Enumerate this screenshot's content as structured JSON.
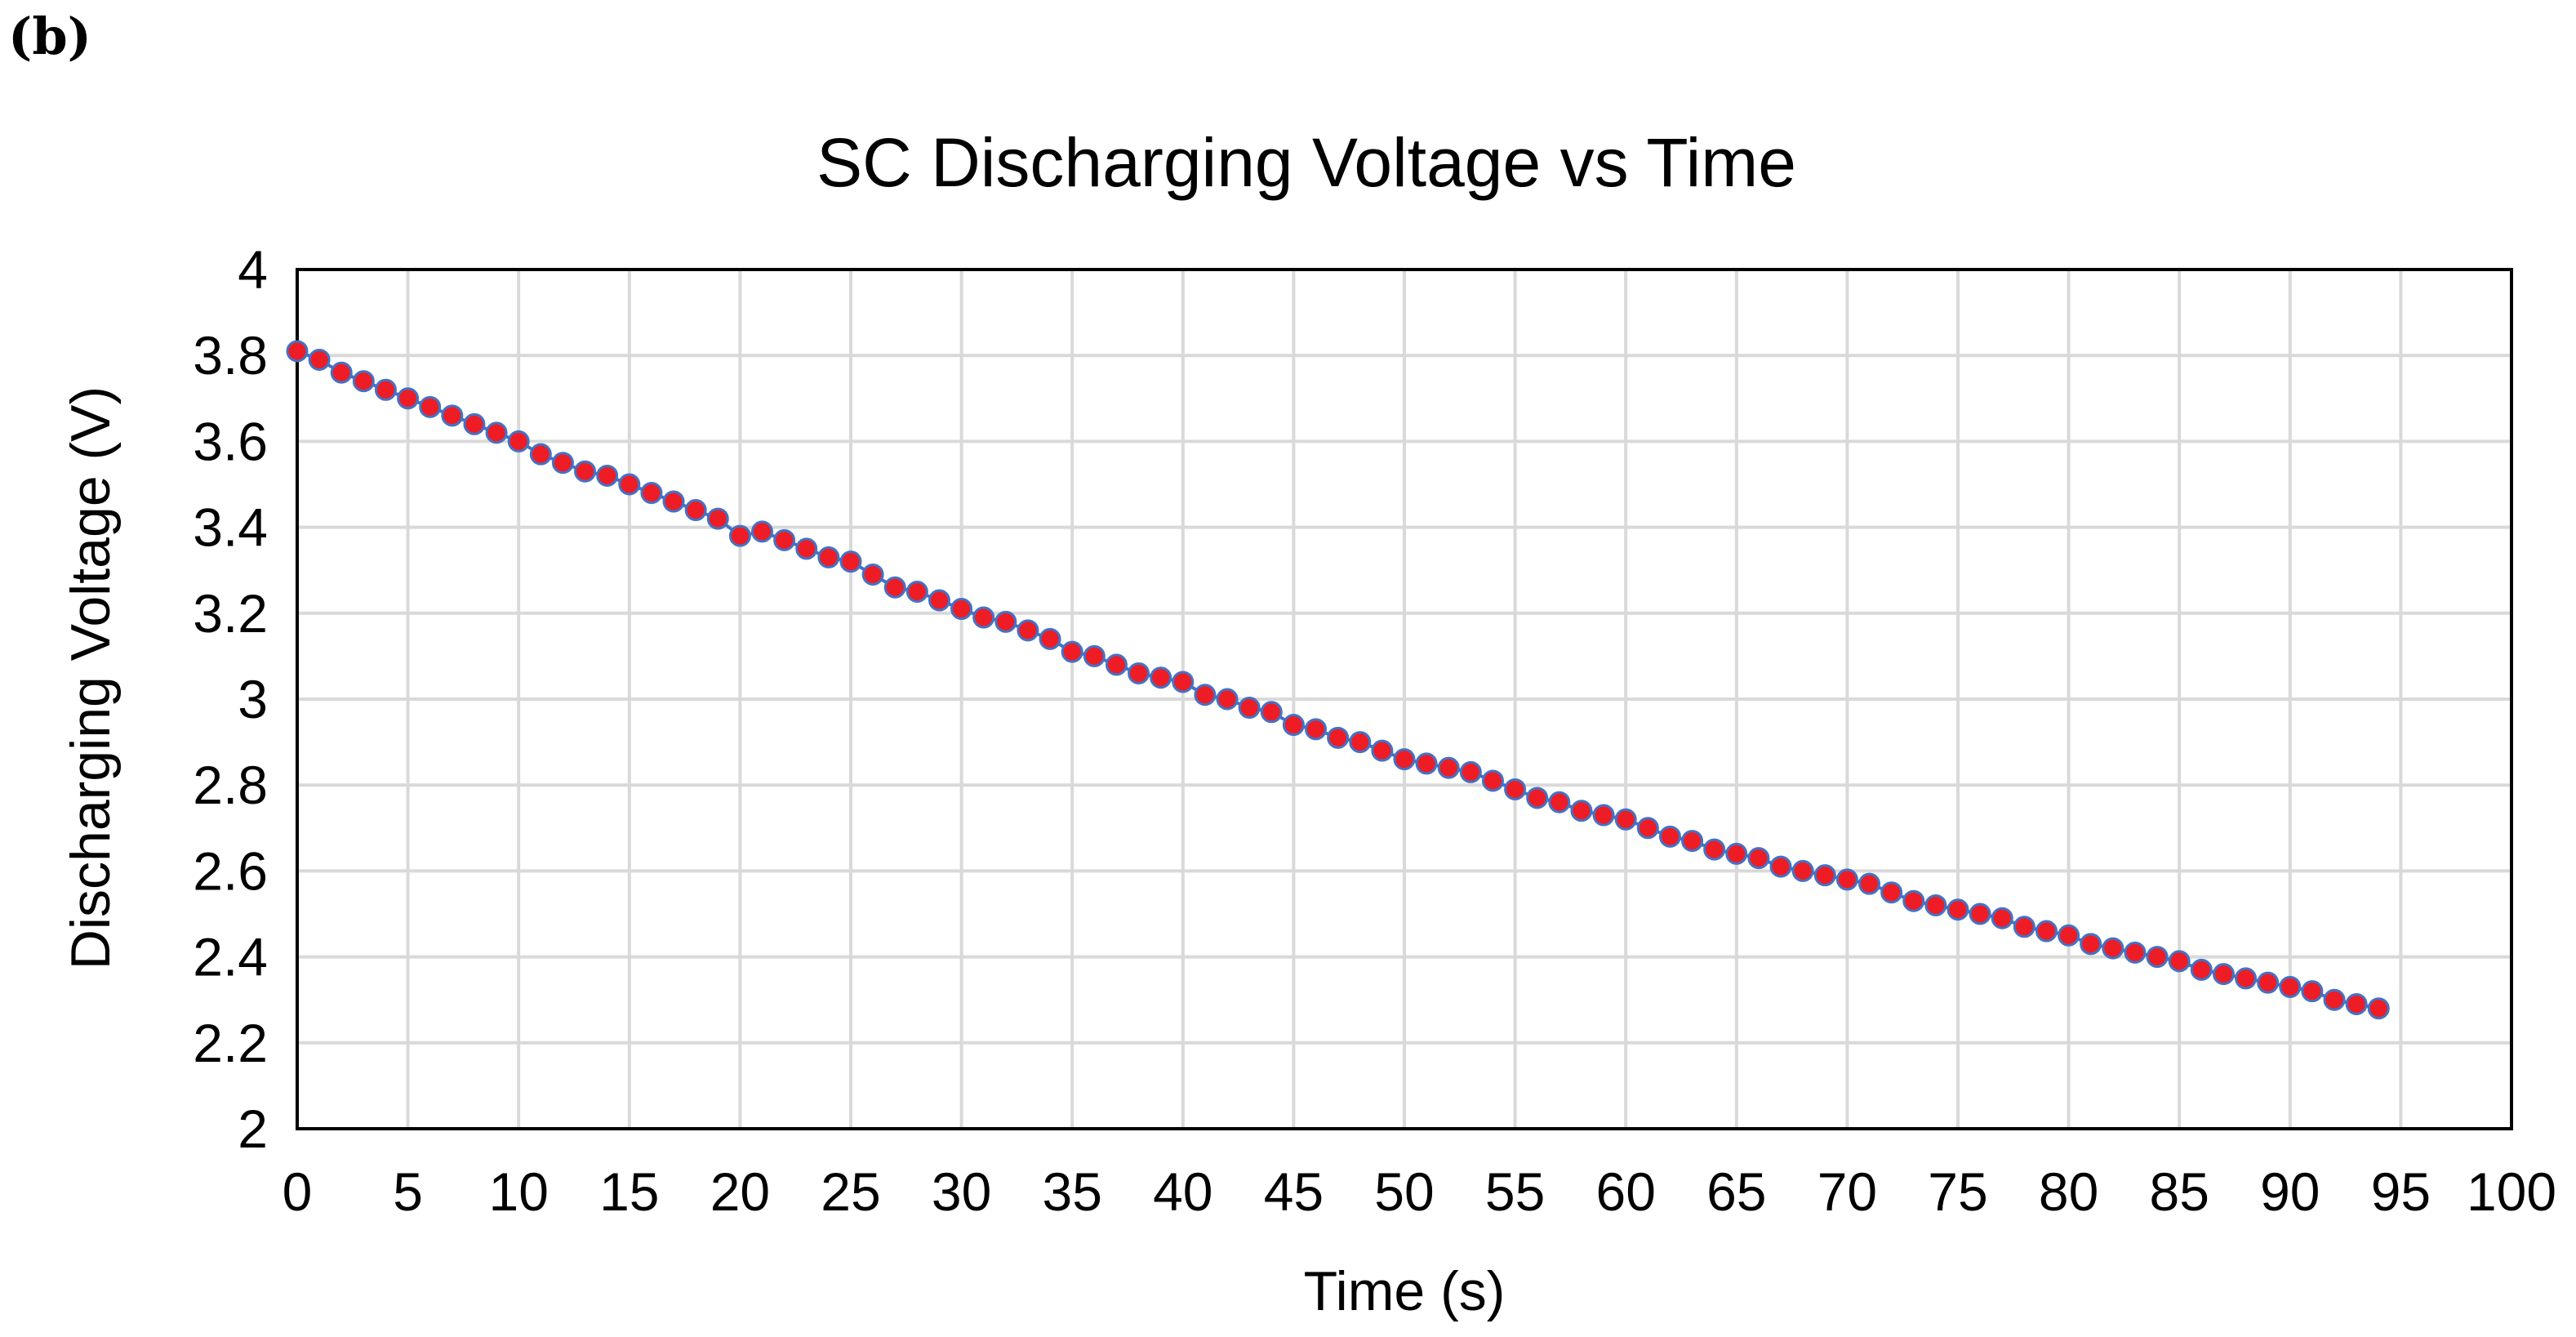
{
  "panel_label": "(b)",
  "chart_data": {
    "type": "scatter",
    "title": "SC Discharging Voltage vs Time",
    "xlabel": "Time (s)",
    "ylabel": "Discharging Voltage (V)",
    "xlim": [
      0,
      100
    ],
    "ylim": [
      2,
      4
    ],
    "xticks": [
      "0",
      "5",
      "10",
      "15",
      "20",
      "25",
      "30",
      "35",
      "40",
      "45",
      "50",
      "55",
      "60",
      "65",
      "70",
      "75",
      "80",
      "85",
      "90",
      "95",
      "100"
    ],
    "yticks": [
      "2",
      "2.2",
      "2.4",
      "2.6",
      "2.8",
      "3",
      "3.2",
      "3.4",
      "3.6",
      "3.8",
      "4"
    ],
    "grid": true,
    "legend": "none",
    "marker_fill": "#ee1c25",
    "marker_edge": "#4472c4",
    "series": [
      {
        "name": "Discharging Voltage",
        "x": [
          0,
          1,
          2,
          3,
          4,
          5,
          6,
          7,
          8,
          9,
          10,
          11,
          12,
          13,
          14,
          15,
          16,
          17,
          18,
          19,
          20,
          21,
          22,
          23,
          24,
          25,
          26,
          27,
          28,
          29,
          30,
          31,
          32,
          33,
          34,
          35,
          36,
          37,
          38,
          39,
          40,
          41,
          42,
          43,
          44,
          45,
          46,
          47,
          48,
          49,
          50,
          51,
          52,
          53,
          54,
          55,
          56,
          57,
          58,
          59,
          60,
          61,
          62,
          63,
          64,
          65,
          66,
          67,
          68,
          69,
          70,
          71,
          72,
          73,
          74,
          75,
          76,
          77,
          78,
          79,
          80,
          81,
          82,
          83,
          84,
          85,
          86,
          87,
          88,
          89,
          90,
          91,
          92,
          93,
          94
        ],
        "y": [
          3.81,
          3.79,
          3.76,
          3.74,
          3.72,
          3.7,
          3.68,
          3.66,
          3.64,
          3.62,
          3.6,
          3.57,
          3.55,
          3.53,
          3.52,
          3.5,
          3.48,
          3.46,
          3.44,
          3.42,
          3.38,
          3.39,
          3.37,
          3.35,
          3.33,
          3.32,
          3.29,
          3.26,
          3.25,
          3.23,
          3.21,
          3.19,
          3.18,
          3.16,
          3.14,
          3.11,
          3.1,
          3.08,
          3.06,
          3.05,
          3.04,
          3.01,
          3.0,
          2.98,
          2.97,
          2.94,
          2.93,
          2.91,
          2.9,
          2.88,
          2.86,
          2.85,
          2.84,
          2.83,
          2.81,
          2.79,
          2.77,
          2.76,
          2.74,
          2.73,
          2.72,
          2.7,
          2.68,
          2.67,
          2.65,
          2.64,
          2.63,
          2.61,
          2.6,
          2.59,
          2.58,
          2.57,
          2.55,
          2.53,
          2.52,
          2.51,
          2.5,
          2.49,
          2.47,
          2.46,
          2.45,
          2.43,
          2.42,
          2.41,
          2.4,
          2.39,
          2.37,
          2.36,
          2.35,
          2.34,
          2.33,
          2.32,
          2.3,
          2.29,
          2.28
        ]
      }
    ]
  }
}
